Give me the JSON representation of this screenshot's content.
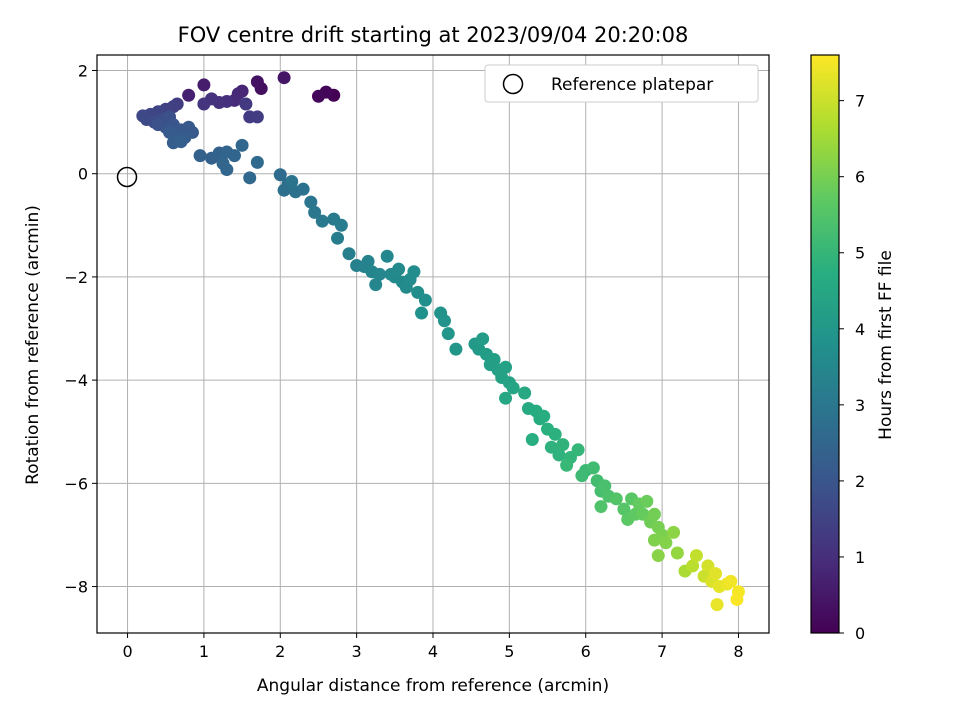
{
  "chart_data": {
    "type": "scatter",
    "title": "FOV centre drift starting at 2023/09/04 20:20:08",
    "xlabel": "Angular distance from reference (arcmin)",
    "ylabel": "Rotation from reference (arcmin)",
    "xlim": [
      -0.4,
      8.4
    ],
    "ylim": [
      -8.9,
      2.3
    ],
    "x_ticks": [
      0,
      1,
      2,
      3,
      4,
      5,
      6,
      7,
      8
    ],
    "y_ticks": [
      -8,
      -6,
      -4,
      -2,
      0,
      2
    ],
    "grid": true,
    "legend": {
      "placement": "top-right",
      "entries": [
        "Reference platepar"
      ]
    },
    "reference_point": {
      "x": 0,
      "y": 0,
      "label": "Reference platepar"
    },
    "colorbar": {
      "label": "Hours from first FF file",
      "colormap": "viridis",
      "range": [
        0,
        7.6
      ],
      "ticks": [
        0,
        1,
        2,
        3,
        4,
        5,
        6,
        7
      ]
    },
    "series": [
      {
        "points": [
          [
            2.7,
            1.52,
            0.0
          ],
          [
            2.6,
            1.58,
            0.1
          ],
          [
            2.5,
            1.5,
            0.15
          ],
          [
            1.75,
            1.65,
            0.3
          ],
          [
            1.7,
            1.78,
            0.35
          ],
          [
            2.05,
            1.86,
            0.45
          ],
          [
            1.0,
            1.72,
            0.6
          ],
          [
            0.8,
            1.52,
            0.7
          ],
          [
            1.5,
            1.6,
            0.8
          ],
          [
            1.45,
            1.55,
            0.85
          ],
          [
            1.4,
            1.42,
            0.9
          ],
          [
            1.3,
            1.4,
            1.0
          ],
          [
            1.2,
            1.38,
            1.05
          ],
          [
            1.1,
            1.45,
            1.1
          ],
          [
            1.0,
            1.35,
            1.15
          ],
          [
            1.55,
            1.35,
            1.25
          ],
          [
            1.6,
            1.1,
            1.3
          ],
          [
            1.7,
            1.1,
            1.35
          ],
          [
            0.65,
            1.35,
            1.35
          ],
          [
            0.6,
            1.3,
            1.45
          ],
          [
            0.5,
            1.25,
            1.5
          ],
          [
            0.4,
            1.2,
            1.55
          ],
          [
            0.3,
            1.15,
            1.6
          ],
          [
            0.2,
            1.12,
            1.65
          ],
          [
            0.25,
            1.05,
            1.7
          ],
          [
            0.35,
            1.0,
            1.75
          ],
          [
            0.45,
            1.05,
            1.8
          ],
          [
            0.55,
            1.1,
            1.85
          ],
          [
            0.4,
            0.95,
            1.9
          ],
          [
            0.5,
            0.9,
            1.95
          ],
          [
            0.6,
            0.95,
            2.0
          ],
          [
            0.7,
            0.85,
            2.05
          ],
          [
            0.8,
            0.9,
            2.1
          ],
          [
            0.85,
            0.8,
            2.12
          ],
          [
            0.65,
            0.75,
            2.15
          ],
          [
            0.55,
            0.8,
            2.17
          ],
          [
            0.75,
            0.7,
            2.2
          ],
          [
            0.6,
            0.6,
            2.25
          ],
          [
            0.7,
            0.62,
            2.28
          ],
          [
            0.95,
            0.35,
            2.32
          ],
          [
            1.1,
            0.3,
            2.35
          ],
          [
            1.2,
            0.4,
            2.38
          ],
          [
            1.3,
            0.42,
            2.42
          ],
          [
            1.4,
            0.35,
            2.45
          ],
          [
            1.25,
            0.2,
            2.48
          ],
          [
            1.3,
            0.08,
            2.5
          ],
          [
            1.5,
            0.55,
            2.52
          ],
          [
            1.6,
            -0.08,
            2.56
          ],
          [
            1.7,
            0.22,
            2.6
          ],
          [
            2.0,
            -0.02,
            2.65
          ],
          [
            2.1,
            -0.2,
            2.7
          ],
          [
            2.05,
            -0.32,
            2.75
          ],
          [
            2.2,
            -0.35,
            2.8
          ],
          [
            2.3,
            -0.3,
            2.85
          ],
          [
            2.15,
            -0.15,
            2.9
          ],
          [
            2.4,
            -0.55,
            2.95
          ],
          [
            2.45,
            -0.75,
            3.0
          ],
          [
            2.55,
            -0.92,
            3.05
          ],
          [
            2.7,
            -0.88,
            3.1
          ],
          [
            2.8,
            -1.0,
            3.15
          ],
          [
            2.75,
            -1.25,
            3.2
          ],
          [
            2.9,
            -1.55,
            3.25
          ],
          [
            3.0,
            -1.78,
            3.3
          ],
          [
            3.1,
            -1.8,
            3.35
          ],
          [
            3.15,
            -1.7,
            3.38
          ],
          [
            3.2,
            -1.9,
            3.42
          ],
          [
            3.3,
            -1.95,
            3.45
          ],
          [
            3.25,
            -2.15,
            3.48
          ],
          [
            3.4,
            -1.6,
            3.5
          ],
          [
            3.45,
            -1.95,
            3.52
          ],
          [
            3.5,
            -2.0,
            3.55
          ],
          [
            3.55,
            -1.85,
            3.58
          ],
          [
            3.6,
            -2.1,
            3.6
          ],
          [
            3.65,
            -2.2,
            3.62
          ],
          [
            3.7,
            -2.05,
            3.65
          ],
          [
            3.75,
            -1.9,
            3.68
          ],
          [
            3.8,
            -2.3,
            3.7
          ],
          [
            3.9,
            -2.45,
            3.75
          ],
          [
            3.85,
            -2.7,
            3.8
          ],
          [
            4.1,
            -2.7,
            3.85
          ],
          [
            4.15,
            -2.85,
            3.9
          ],
          [
            4.2,
            -3.1,
            3.95
          ],
          [
            4.3,
            -3.4,
            4.0
          ],
          [
            4.55,
            -3.3,
            4.05
          ],
          [
            4.6,
            -3.4,
            4.1
          ],
          [
            4.65,
            -3.2,
            4.15
          ],
          [
            4.7,
            -3.5,
            4.18
          ],
          [
            4.75,
            -3.7,
            4.22
          ],
          [
            4.8,
            -3.6,
            4.25
          ],
          [
            4.85,
            -3.8,
            4.28
          ],
          [
            4.9,
            -3.95,
            4.32
          ],
          [
            4.95,
            -3.75,
            4.35
          ],
          [
            5.0,
            -4.05,
            4.4
          ],
          [
            5.05,
            -4.15,
            4.45
          ],
          [
            4.95,
            -4.35,
            4.5
          ],
          [
            5.2,
            -4.25,
            4.55
          ],
          [
            5.25,
            -4.55,
            4.6
          ],
          [
            5.35,
            -4.6,
            4.65
          ],
          [
            5.4,
            -4.75,
            4.68
          ],
          [
            5.45,
            -4.7,
            4.72
          ],
          [
            5.3,
            -5.15,
            4.75
          ],
          [
            5.5,
            -4.95,
            4.78
          ],
          [
            5.6,
            -5.05,
            4.82
          ],
          [
            5.55,
            -5.3,
            4.85
          ],
          [
            5.65,
            -5.45,
            4.88
          ],
          [
            5.7,
            -5.25,
            4.9
          ],
          [
            5.8,
            -5.5,
            4.95
          ],
          [
            5.9,
            -5.35,
            5.0
          ],
          [
            5.75,
            -5.65,
            5.05
          ],
          [
            6.0,
            -5.75,
            5.1
          ],
          [
            5.95,
            -5.85,
            5.15
          ],
          [
            6.1,
            -5.7,
            5.2
          ],
          [
            6.15,
            -5.95,
            5.25
          ],
          [
            6.2,
            -6.15,
            5.3
          ],
          [
            6.25,
            -6.05,
            5.35
          ],
          [
            6.3,
            -6.25,
            5.4
          ],
          [
            6.2,
            -6.45,
            5.45
          ],
          [
            6.4,
            -6.3,
            5.5
          ],
          [
            6.5,
            -6.5,
            5.55
          ],
          [
            6.6,
            -6.3,
            5.6
          ],
          [
            6.55,
            -6.7,
            5.65
          ],
          [
            6.65,
            -6.6,
            5.7
          ],
          [
            6.7,
            -6.4,
            5.75
          ],
          [
            6.75,
            -6.6,
            5.8
          ],
          [
            6.8,
            -6.35,
            5.85
          ],
          [
            6.85,
            -6.75,
            5.9
          ],
          [
            6.9,
            -6.6,
            5.95
          ],
          [
            6.95,
            -6.85,
            6.0
          ],
          [
            7.0,
            -7.0,
            6.05
          ],
          [
            6.9,
            -7.1,
            6.1
          ],
          [
            7.05,
            -7.15,
            6.15
          ],
          [
            6.95,
            -7.4,
            6.2
          ],
          [
            7.15,
            -6.95,
            6.25
          ],
          [
            7.2,
            -7.35,
            6.35
          ],
          [
            7.3,
            -7.7,
            6.6
          ],
          [
            7.4,
            -7.6,
            6.8
          ],
          [
            7.45,
            -7.4,
            6.9
          ],
          [
            7.55,
            -7.8,
            7.0
          ],
          [
            7.6,
            -7.6,
            7.1
          ],
          [
            7.65,
            -7.9,
            7.2
          ],
          [
            7.7,
            -7.75,
            7.25
          ],
          [
            7.75,
            -8.0,
            7.3
          ],
          [
            7.72,
            -8.35,
            7.35
          ],
          [
            7.85,
            -7.95,
            7.4
          ],
          [
            7.9,
            -7.9,
            7.45
          ],
          [
            8.0,
            -8.1,
            7.5
          ],
          [
            7.98,
            -8.25,
            7.55
          ]
        ]
      }
    ]
  }
}
